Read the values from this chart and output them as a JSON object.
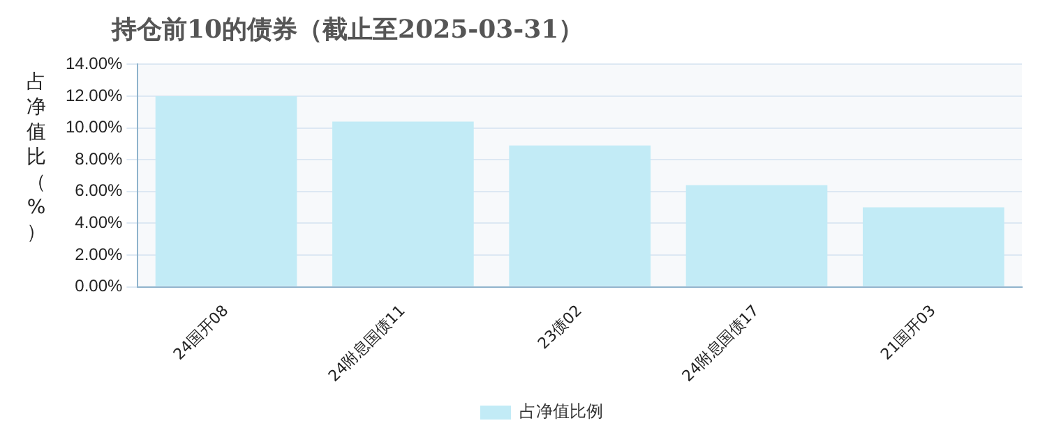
{
  "chart_data": {
    "type": "bar",
    "title": "持仓前10的债券（截止至2025-03-31）",
    "ylabel": "占净值比（%）",
    "categories": [
      "24国开08",
      "24附息国债11",
      "23债02",
      "24附息国债17",
      "21国开03"
    ],
    "series": [
      {
        "name": "占净值比例",
        "color": "#c2ebf6",
        "values": [
          12.0,
          10.4,
          8.9,
          6.4,
          5.0
        ]
      }
    ],
    "ylim": [
      0,
      14
    ],
    "yticks": [
      {
        "value": 0,
        "label": "0.00%"
      },
      {
        "value": 2,
        "label": "2.00%"
      },
      {
        "value": 4,
        "label": "4.00%"
      },
      {
        "value": 6,
        "label": "6.00%"
      },
      {
        "value": 8,
        "label": "8.00%"
      },
      {
        "value": 10,
        "label": "10.00%"
      },
      {
        "value": 12,
        "label": "12.00%"
      },
      {
        "value": 14,
        "label": "14.00%"
      }
    ],
    "grid": "y",
    "legend": "bottom"
  }
}
